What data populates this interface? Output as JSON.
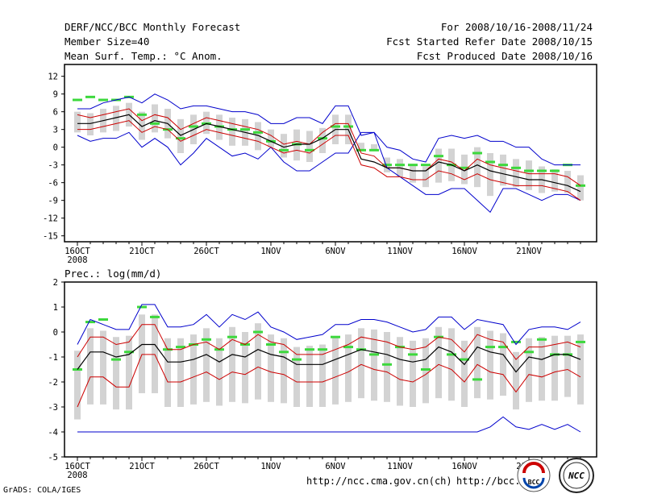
{
  "header": {
    "title": "DERF/NCC/BCC Monthly Forecast",
    "member_size": "Member Size=40",
    "variable": "Mean Surf. Temp.: °C Anom.",
    "period": "For 2008/10/16-2008/11/24",
    "started": "Fcst Started Refer Date 2008/10/15",
    "produced": "Fcst Produced Date 2008/10/16"
  },
  "footer": {
    "grads": "GrADS: COLA/IGES",
    "url1": "http://ncc.cma.gov.cn(ch)",
    "url2": "http://bcc."
  },
  "logos": {
    "bcc": "BCC",
    "ncc": "NCC"
  },
  "colors": {
    "max_line": "#0000cc",
    "pct_line": "#cc0000",
    "mean_line": "#000000",
    "box": "#d3d3d3",
    "bar": "#3cd83c"
  },
  "chart_data": [
    {
      "type": "line",
      "title": "Mean Surf. Temp.: °C Anom.",
      "x_ticks": [
        "16OCT",
        "21OCT",
        "26OCT",
        "1NOV",
        "6NOV",
        "11NOV",
        "16NOV",
        "21NOV"
      ],
      "x_year": "2008",
      "ylim": [
        -16,
        14
      ],
      "yticks": [
        "12",
        "9",
        "6",
        "3",
        "0",
        "-3",
        "-6",
        "-9",
        "-12",
        "-15"
      ],
      "days": 40,
      "series": [
        {
          "name": "max",
          "values": [
            2,
            1,
            1.5,
            1.5,
            2.5,
            0,
            1.5,
            0,
            -3,
            -1,
            1.5,
            0,
            -1.5,
            -1,
            -2,
            0,
            -2.5,
            -4,
            -4,
            -2.5,
            -1,
            -1,
            2.5,
            2.5,
            -3.5,
            -5,
            -6.5,
            -8,
            -8,
            -7,
            -7,
            -9,
            -11,
            -7,
            -7,
            -8,
            -9,
            -8,
            -8,
            -9
          ]
        },
        {
          "name": "p75",
          "values": [
            5.5,
            5,
            5.5,
            6,
            6.5,
            4.5,
            5.5,
            5,
            3,
            4,
            5,
            4.5,
            4,
            3.5,
            3,
            2,
            0.5,
            1,
            0.5,
            2.5,
            4,
            4,
            -1,
            -1.5,
            -3.5,
            -3.5,
            -4,
            -4,
            -2,
            -2.5,
            -4,
            -2,
            -3,
            -3.5,
            -4,
            -4.5,
            -4.5,
            -4.5,
            -5,
            -6.5
          ]
        },
        {
          "name": "mean",
          "values": [
            4,
            4,
            4.5,
            5,
            5.5,
            3.5,
            4.5,
            4,
            2,
            3,
            4,
            3.5,
            3,
            2.5,
            2,
            1,
            0,
            0.5,
            0.5,
            1.5,
            3,
            3,
            -2,
            -2.5,
            -3.5,
            -3.5,
            -4,
            -4,
            -2.5,
            -3,
            -4,
            -3,
            -4,
            -4.5,
            -5,
            -5.5,
            -5.5,
            -6,
            -6.5,
            -7.5
          ]
        },
        {
          "name": "p25",
          "values": [
            3,
            3,
            3.5,
            4,
            4.5,
            2.5,
            3.5,
            3,
            1,
            2,
            3,
            2.5,
            2,
            1.5,
            1,
            0,
            -1,
            -0.5,
            -1,
            0.5,
            2,
            2,
            -3,
            -3.5,
            -5,
            -5,
            -5.5,
            -5.5,
            -4,
            -4.5,
            -5.5,
            -4.5,
            -5.5,
            -6,
            -6.5,
            -6.5,
            -6.5,
            -7,
            -7.5,
            -9
          ]
        },
        {
          "name": "min",
          "values": [
            6.5,
            6.5,
            7.5,
            8,
            8.5,
            7.5,
            9,
            8,
            6.5,
            7,
            7,
            6.5,
            6,
            6,
            5.5,
            4,
            4,
            5,
            5,
            4,
            7,
            7,
            2,
            2.5,
            0,
            -0.5,
            -2,
            -2.5,
            1.5,
            2,
            1.5,
            2,
            1,
            1,
            0,
            0,
            -2,
            -3,
            -3,
            -3
          ]
        },
        {
          "name": "control_forecast",
          "values": [
            8,
            8.5,
            8,
            8,
            8.5,
            5.5,
            4,
            3,
            1.5,
            3.5,
            4,
            3.5,
            3,
            3,
            2.5,
            1,
            -0.5,
            0.5,
            -0.5,
            1.5,
            3.5,
            3.5,
            -0.5,
            -0.5,
            -3,
            -3,
            -3,
            -3,
            -1.5,
            -3,
            -3.5,
            -1,
            -2.5,
            -3,
            -3.5,
            -4,
            -4,
            -4,
            -3,
            -6.5
          ]
        }
      ]
    },
    {
      "type": "line",
      "title": "Prec.: log(mm/d)",
      "x_ticks": [
        "16OCT",
        "21OCT",
        "26OCT",
        "1NOV",
        "6NOV",
        "11NOV",
        "16NOV",
        "21NOV"
      ],
      "x_year": "2008",
      "ylim": [
        -5,
        2
      ],
      "yticks": [
        "2",
        "1",
        "0",
        "-1",
        "-2",
        "-3",
        "-4",
        "-5"
      ],
      "days": 40,
      "series": [
        {
          "name": "max",
          "values": [
            -0.5,
            0.5,
            0.3,
            0.1,
            0.1,
            1.1,
            1.1,
            0.2,
            0.2,
            0.3,
            0.7,
            0.2,
            0.7,
            0.5,
            0.8,
            0.2,
            0,
            -0.3,
            -0.2,
            -0.1,
            0.3,
            0.3,
            0.5,
            0.5,
            0.4,
            0.2,
            0,
            0.1,
            0.6,
            0.6,
            0.1,
            0.5,
            0.4,
            0.3,
            -0.5,
            0.1,
            0.2,
            0.2,
            0.1,
            0.4
          ]
        },
        {
          "name": "p75",
          "values": [
            -1,
            -0.2,
            -0.2,
            -0.5,
            -0.4,
            0.3,
            0.3,
            -0.7,
            -0.7,
            -0.5,
            -0.4,
            -0.7,
            -0.3,
            -0.5,
            -0.1,
            -0.4,
            -0.5,
            -0.9,
            -0.9,
            -0.9,
            -0.7,
            -0.5,
            -0.2,
            -0.3,
            -0.4,
            -0.6,
            -0.7,
            -0.6,
            -0.2,
            -0.3,
            -0.8,
            -0.1,
            -0.3,
            -0.4,
            -1.1,
            -0.6,
            -0.6,
            -0.5,
            -0.4,
            -0.6
          ]
        },
        {
          "name": "mean",
          "values": [
            -1.5,
            -0.8,
            -0.8,
            -1,
            -0.9,
            -0.5,
            -0.5,
            -1.2,
            -1.2,
            -1.1,
            -0.9,
            -1.2,
            -0.9,
            -1,
            -0.7,
            -0.9,
            -1,
            -1.3,
            -1.3,
            -1.3,
            -1.1,
            -0.9,
            -0.7,
            -0.8,
            -0.9,
            -1.1,
            -1.2,
            -1.1,
            -0.6,
            -0.8,
            -1.3,
            -0.6,
            -0.8,
            -0.9,
            -1.6,
            -1,
            -1.1,
            -0.9,
            -0.9,
            -1.1
          ]
        },
        {
          "name": "p25",
          "values": [
            -3,
            -1.8,
            -1.8,
            -2.2,
            -2.2,
            -0.9,
            -0.9,
            -2,
            -2,
            -1.8,
            -1.6,
            -1.9,
            -1.6,
            -1.7,
            -1.4,
            -1.6,
            -1.7,
            -2,
            -2,
            -2,
            -1.8,
            -1.6,
            -1.3,
            -1.5,
            -1.6,
            -1.9,
            -2,
            -1.7,
            -1.3,
            -1.5,
            -2,
            -1.3,
            -1.6,
            -1.7,
            -2.4,
            -1.7,
            -1.8,
            -1.6,
            -1.5,
            -1.8
          ]
        },
        {
          "name": "min",
          "values": [
            -4,
            -4,
            -4,
            -4,
            -4,
            -4,
            -4,
            -4,
            -4,
            -4,
            -4,
            -4,
            -4,
            -4,
            -4,
            -4,
            -4,
            -4,
            -4,
            -4,
            -4,
            -4,
            -4,
            -4,
            -4,
            -4,
            -4,
            -4,
            -4,
            -4,
            -4,
            -4,
            -3.8,
            -3.4,
            -3.8,
            -3.9,
            -3.7,
            -3.9,
            -3.7,
            -4
          ]
        },
        {
          "name": "control_forecast",
          "values": [
            -1.5,
            0.4,
            0.5,
            -1.1,
            -0.8,
            1,
            0.6,
            -0.7,
            -0.6,
            -0.5,
            -0.3,
            -0.7,
            -0.2,
            -0.5,
            0,
            -0.5,
            -0.8,
            -1.1,
            -0.7,
            -0.7,
            -0.2,
            -0.6,
            -0.7,
            -0.9,
            -1.3,
            -0.6,
            -0.9,
            -1.5,
            -0.2,
            -0.9,
            -1.1,
            -1.9,
            -0.6,
            -0.6,
            -0.4,
            -0.8,
            -0.3,
            -0.9,
            -0.9,
            -0.4
          ]
        }
      ]
    }
  ]
}
